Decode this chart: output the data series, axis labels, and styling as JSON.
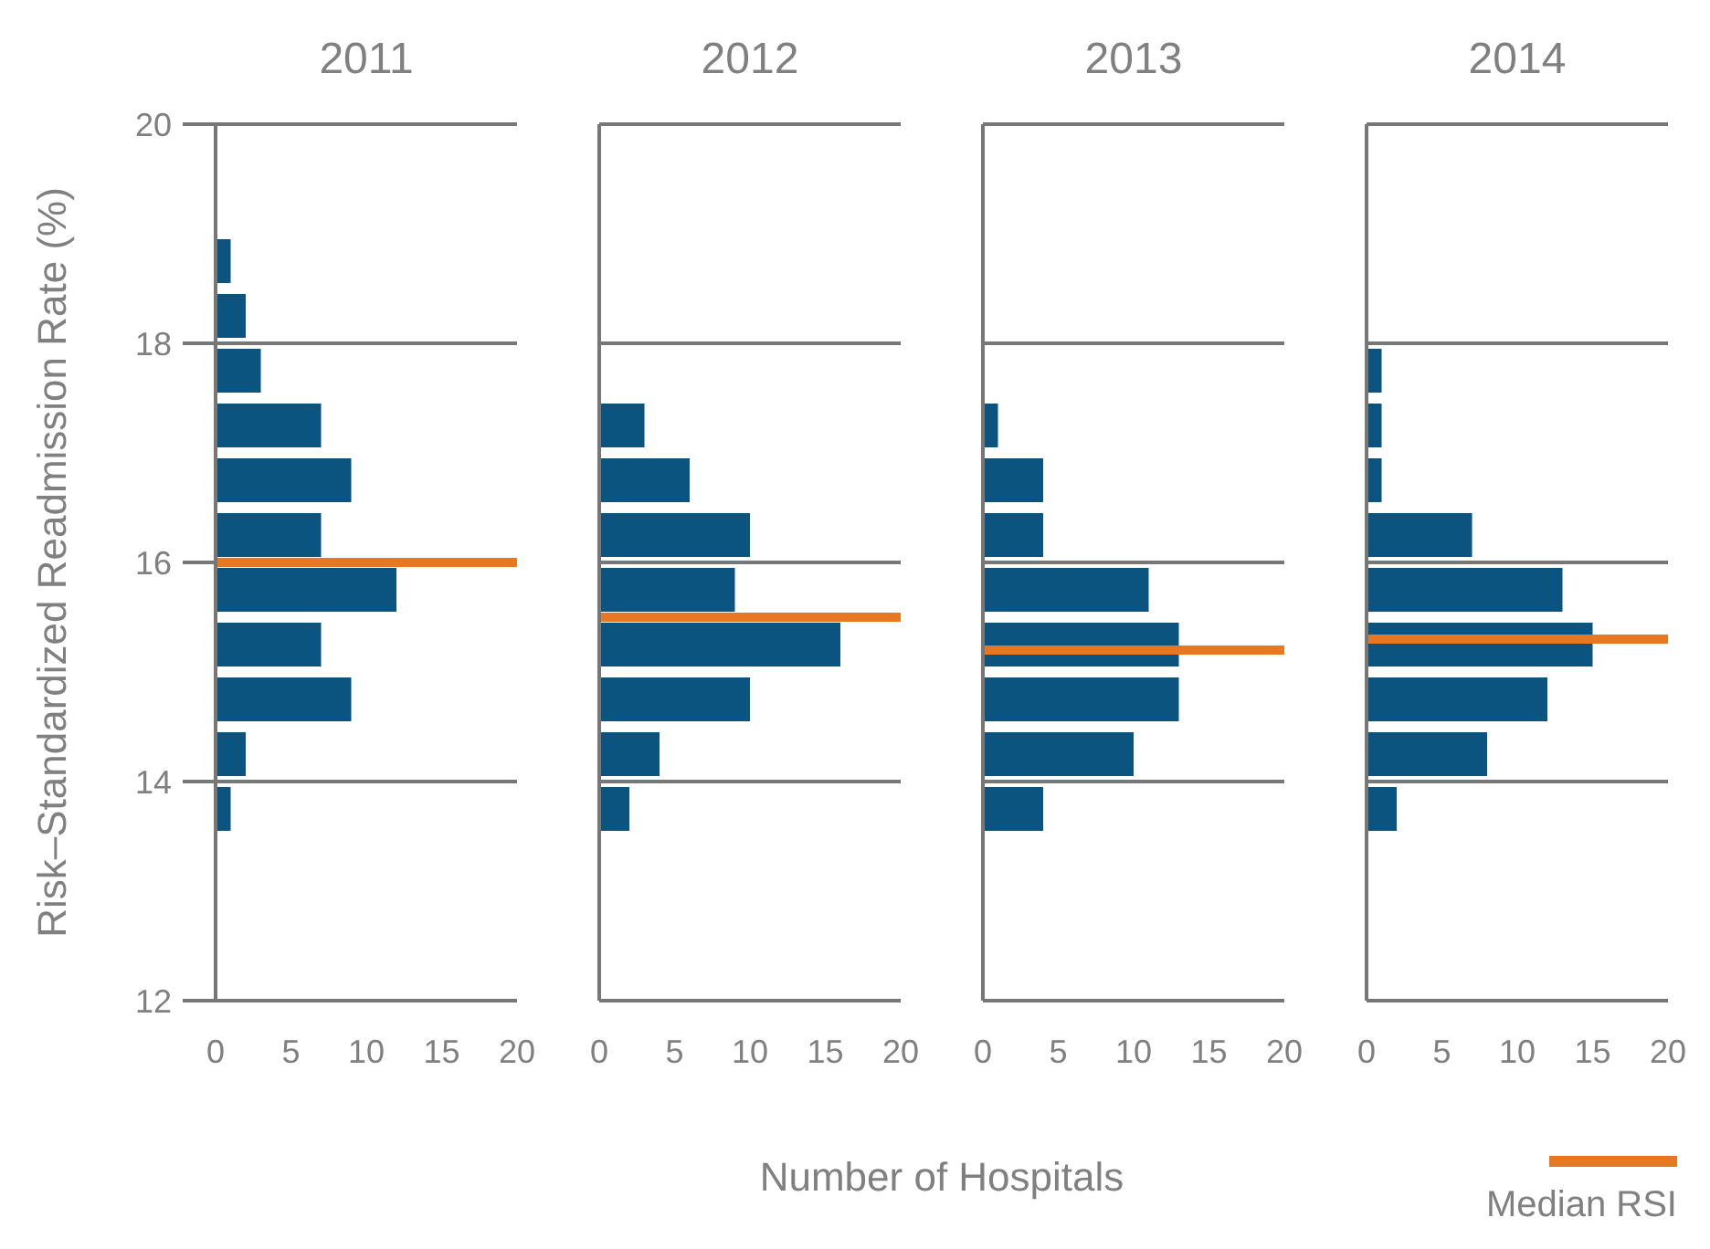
{
  "chart_data": [
    {
      "type": "histogram",
      "orientation": "horizontal",
      "title": "2011",
      "ylabel": "Risk–Standardized Readmission Rate (%)",
      "xlabel": "Number of Hospitals",
      "color": "#0b5480",
      "bins": [
        13.5,
        14,
        14.5,
        15,
        15.5,
        16,
        16.5,
        17,
        17.5,
        18,
        18.5,
        19
      ],
      "values": [
        1,
        2,
        9,
        7,
        12,
        7,
        9,
        7,
        3,
        2,
        1
      ],
      "xlim": [
        0,
        20
      ],
      "xticks": [
        0,
        5,
        10,
        15,
        20
      ],
      "ylim": [
        12,
        20
      ],
      "yticks": [
        12,
        14,
        16,
        18,
        20
      ],
      "grid": "y",
      "ref_lines": [
        {
          "axis": "y",
          "value": 16,
          "color": "#e87722"
        }
      ]
    },
    {
      "type": "histogram",
      "orientation": "horizontal",
      "title": "2012",
      "color": "#0b5480",
      "bins": [
        13.5,
        14,
        14.5,
        15,
        15.5,
        16,
        16.5,
        17,
        17.5
      ],
      "values": [
        2,
        4,
        10,
        16,
        9,
        10,
        6,
        3
      ],
      "xlim": [
        0,
        20
      ],
      "xticks": [
        0,
        5,
        10,
        15,
        20
      ],
      "ylim": [
        12,
        20
      ],
      "yticks": [
        12,
        14,
        16,
        18,
        20
      ],
      "grid": "y",
      "tick_labels": "x",
      "ref_lines": [
        {
          "axis": "y",
          "value": 15.5,
          "color": "#e87722"
        }
      ]
    },
    {
      "type": "histogram",
      "orientation": "horizontal",
      "title": "2013",
      "color": "#0b5480",
      "bins": [
        13.5,
        14,
        14.5,
        15,
        15.5,
        16,
        16.5,
        17,
        17.5
      ],
      "values": [
        4,
        10,
        13,
        13,
        11,
        4,
        4,
        1
      ],
      "xlim": [
        0,
        20
      ],
      "xticks": [
        0,
        5,
        10,
        15,
        20
      ],
      "ylim": [
        12,
        20
      ],
      "yticks": [
        12,
        14,
        16,
        18,
        20
      ],
      "grid": "y",
      "tick_labels": "x",
      "ref_lines": [
        {
          "axis": "y",
          "value": 15.2,
          "color": "#e87722"
        }
      ]
    },
    {
      "type": "histogram",
      "orientation": "horizontal",
      "title": "2014",
      "color": "#0b5480",
      "bins": [
        13.5,
        14,
        14.5,
        15,
        15.5,
        16,
        16.5,
        17,
        17.5,
        18
      ],
      "values": [
        2,
        8,
        12,
        15,
        13,
        7,
        1,
        1,
        1
      ],
      "xlim": [
        0,
        20
      ],
      "xticks": [
        0,
        5,
        10,
        15,
        20
      ],
      "ylim": [
        12,
        20
      ],
      "yticks": [
        12,
        14,
        16,
        18,
        20
      ],
      "grid": "y",
      "tick_labels": "x",
      "legend": "bottom right",
      "ref_lines": [
        {
          "axis": "y",
          "value": 15.3,
          "color": "#e87722",
          "label": "Median RSI"
        }
      ]
    }
  ]
}
